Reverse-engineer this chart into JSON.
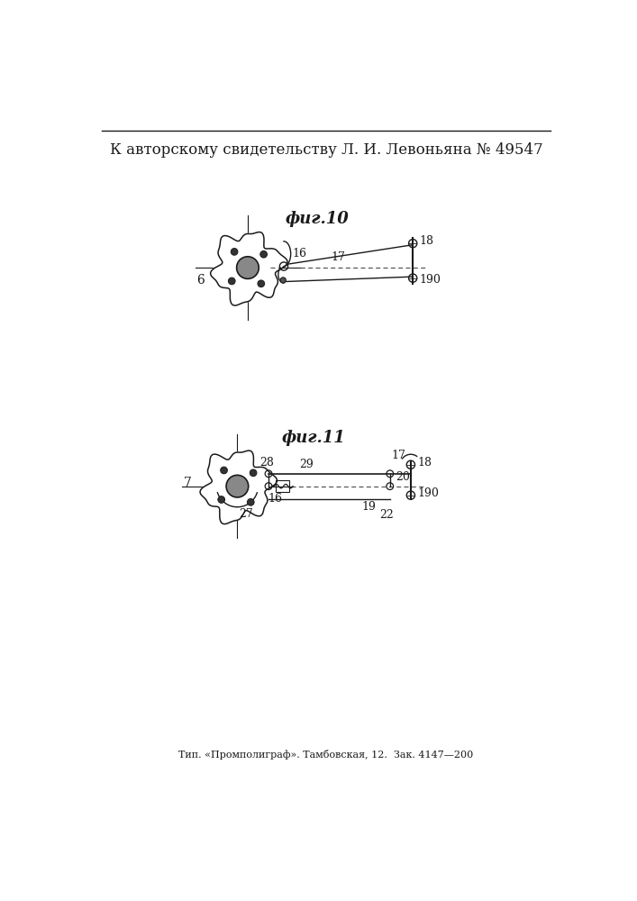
{
  "title_line": "К авторскому свидетельству Л. И. Левоньяна № 49547",
  "fig1_label": "фиг.10",
  "fig2_label": "фиг.11",
  "footer": "Тип. «Промполиграф». Тамбовская, 12.  Зак. 4147—200",
  "bg_color": "#ffffff",
  "line_color": "#1a1a1a"
}
